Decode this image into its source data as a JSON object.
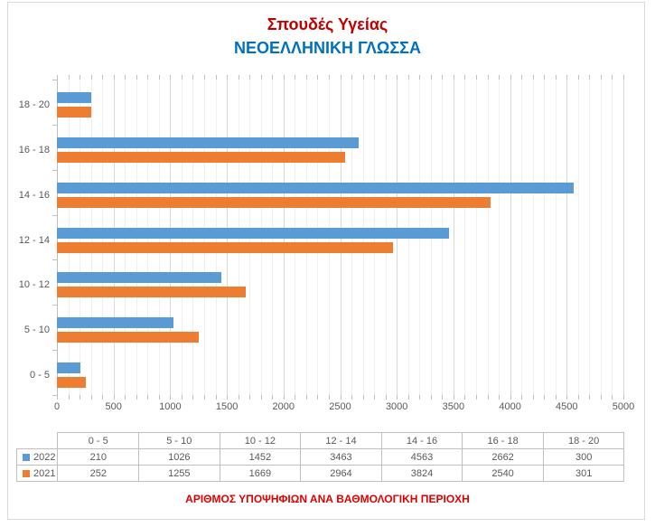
{
  "titles": {
    "line1": "Σπουδές Υγείας",
    "line2": "ΝΕΟΕΛΛΗΝΙΚΗ ΓΛΩΣΣΑ"
  },
  "footer": {
    "label": "ΑΡΙΘΜΟΣ ΥΠΟΨΗΦΙΩΝ ΑΝΑ ΒΑΘΜΟΛΟΓΙΚΗ ΠΕΡΙΟΧΗ"
  },
  "colors": {
    "title_red": "#C00000",
    "title_blue": "#0070C0",
    "footer_red": "#E00000",
    "series_2022": "#5B9BD5",
    "series_2021": "#ED7D31",
    "axis_text": "#595959",
    "tick": "#BFBFBF",
    "grid_major": "#D9D9D9",
    "grid_minor": "#EFEFEF",
    "table_border": "#BFBFBF",
    "frame_border": "#D9D9D9"
  },
  "chart_data": {
    "type": "bar",
    "orientation": "horizontal",
    "title": "Σπουδές Υγείας — ΝΕΟΕΛΛΗΝΙΚΗ ΓΛΩΣΣΑ",
    "xlabel": "ΑΡΙΘΜΟΣ ΥΠΟΨΗΦΙΩΝ ΑΝΑ ΒΑΘΜΟΛΟΓΙΚΗ ΠΕΡΙΟΧΗ",
    "ylabel": "",
    "categories": [
      "0 - 5",
      "5 - 10",
      "10 - 12",
      "12 - 14",
      "14 - 16",
      "16 - 18",
      "18 - 20"
    ],
    "categories_top_to_bottom": [
      "18 - 20",
      "16 - 18",
      "14 - 16",
      "12 - 14",
      "10 - 12",
      "5 - 10",
      "0 - 5"
    ],
    "series": [
      {
        "name": "2022",
        "color": "#5B9BD5",
        "values": [
          210,
          1026,
          1452,
          3463,
          4563,
          2662,
          300
        ]
      },
      {
        "name": "2021",
        "color": "#ED7D31",
        "values": [
          252,
          1255,
          1669,
          2964,
          3824,
          2540,
          301
        ]
      }
    ],
    "x_axis": {
      "min": 0,
      "max": 5000,
      "major_step": 500,
      "minor_step": 100,
      "tick_labels": [
        "0",
        "500",
        "1000",
        "1500",
        "2000",
        "2500",
        "3000",
        "3500",
        "4000",
        "4500",
        "5000"
      ]
    },
    "grid": true,
    "legend_position": "data-table-left",
    "data_table": true
  }
}
